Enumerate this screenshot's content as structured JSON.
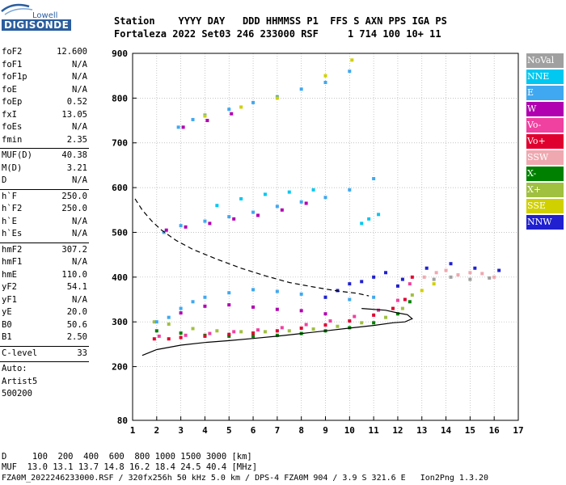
{
  "logo": {
    "top": "Lowell",
    "bottom": "DIGISONDE"
  },
  "header": {
    "labels": "Station    YYYY DAY   DDD HHMMSS P1  FFS S AXN PPS IGA PS",
    "values": "Fortaleza 2022 Set03 246 233000 RSF     1 714 100 10+ 11"
  },
  "params": [
    {
      "group": [
        {
          "label": "foF2",
          "value": "12.600"
        },
        {
          "label": "foF1",
          "value": "N/A"
        },
        {
          "label": "foF1p",
          "value": "N/A"
        },
        {
          "label": "foE",
          "value": "N/A"
        },
        {
          "label": "foEp",
          "value": "0.52"
        },
        {
          "label": "fxI",
          "value": "13.05"
        },
        {
          "label": "foEs",
          "value": "N/A"
        },
        {
          "label": "fmin",
          "value": "2.35"
        }
      ]
    },
    {
      "group": [
        {
          "label": "MUF(D)",
          "value": "40.38"
        },
        {
          "label": "M(D)",
          "value": "3.21"
        },
        {
          "label": "D",
          "value": "N/A"
        }
      ]
    },
    {
      "group": [
        {
          "label": "h`F",
          "value": "250.0"
        },
        {
          "label": "h`F2",
          "value": "250.0"
        },
        {
          "label": "h`E",
          "value": "N/A"
        },
        {
          "label": "h`Es",
          "value": "N/A"
        }
      ]
    },
    {
      "group": [
        {
          "label": "hmF2",
          "value": "307.2"
        },
        {
          "label": "hmF1",
          "value": "N/A"
        },
        {
          "label": "hmE",
          "value": "110.0"
        },
        {
          "label": "yF2",
          "value": "54.1"
        },
        {
          "label": "yF1",
          "value": "N/A"
        },
        {
          "label": "yE",
          "value": "20.0"
        },
        {
          "label": "B0",
          "value": "50.6"
        },
        {
          "label": "B1",
          "value": "2.50"
        }
      ]
    },
    {
      "group": [
        {
          "label": "C-level",
          "value": "33"
        }
      ]
    }
  ],
  "auto": [
    "Auto:",
    "Artist5",
    "500200"
  ],
  "legend": [
    {
      "label": "NoVal",
      "color": "#a0a0a0"
    },
    {
      "label": "NNE",
      "color": "#00c8f0"
    },
    {
      "label": "E",
      "color": "#40a8f0"
    },
    {
      "label": "W",
      "color": "#b000b0"
    },
    {
      "label": "Vo-",
      "color": "#f040a0"
    },
    {
      "label": "Vo+",
      "color": "#e00030"
    },
    {
      "label": "SSW",
      "color": "#f0a8b0"
    },
    {
      "label": "X-",
      "color": "#008000"
    },
    {
      "label": "X+",
      "color": "#a0c040"
    },
    {
      "label": "SSE",
      "color": "#d0d000"
    },
    {
      "label": "NNW",
      "color": "#2020d0"
    }
  ],
  "footer": {
    "d_row": "D     100  200  400  600  800 1000 1500 3000 [km]",
    "muf_row": "MUF  13.0 13.1 13.7 14.8 16.2 18.4 24.5 40.4 [MHz]",
    "file_row": "FZA0M_2022246233000.RSF / 320fx256h 50 kHz 5.0 km / DPS-4 FZA0M 904 / 3.9 S 321.6 E   Ion2Png 1.3.20"
  },
  "chart_data": {
    "type": "scatter",
    "title": "",
    "xlabel": "",
    "ylabel": "",
    "xlim": [
      1,
      17
    ],
    "ylim": [
      80,
      900
    ],
    "x_ticks": [
      1,
      2,
      3,
      4,
      5,
      6,
      7,
      8,
      9,
      10,
      11,
      12,
      13,
      14,
      15,
      16,
      17
    ],
    "y_ticks": [
      80,
      200,
      300,
      400,
      500,
      600,
      700,
      800,
      900
    ],
    "grid": true,
    "series": [
      {
        "name": "X+",
        "points": [
          [
            1.9,
            300
          ],
          [
            2.5,
            295
          ],
          [
            3.5,
            285
          ],
          [
            4.5,
            280
          ],
          [
            5.5,
            278
          ],
          [
            6.5,
            278
          ],
          [
            7.5,
            280
          ],
          [
            8.5,
            284
          ],
          [
            9.5,
            290
          ],
          [
            10.5,
            298
          ],
          [
            11.5,
            310
          ],
          [
            12.2,
            330
          ],
          [
            12.6,
            360
          ]
        ]
      },
      {
        "name": "X-",
        "points": [
          [
            2.0,
            280
          ],
          [
            3.0,
            275
          ],
          [
            4.0,
            270
          ],
          [
            5.0,
            268
          ],
          [
            6.0,
            268
          ],
          [
            7.0,
            270
          ],
          [
            8.0,
            274
          ],
          [
            9.0,
            280
          ],
          [
            10.0,
            287
          ],
          [
            11.0,
            298
          ],
          [
            12.0,
            318
          ],
          [
            12.5,
            345
          ]
        ]
      },
      {
        "name": "Vo+",
        "points": [
          [
            1.9,
            262
          ],
          [
            2.5,
            262
          ],
          [
            3.0,
            265
          ],
          [
            4.0,
            268
          ],
          [
            5.0,
            272
          ],
          [
            6.0,
            275
          ],
          [
            7.0,
            280
          ],
          [
            8.0,
            286
          ],
          [
            9.0,
            293
          ],
          [
            10.0,
            302
          ],
          [
            11.0,
            315
          ],
          [
            11.8,
            330
          ],
          [
            12.3,
            350
          ],
          [
            12.6,
            400
          ]
        ]
      },
      {
        "name": "Vo-",
        "points": [
          [
            2.1,
            268
          ],
          [
            3.2,
            270
          ],
          [
            4.2,
            274
          ],
          [
            5.2,
            278
          ],
          [
            6.2,
            282
          ],
          [
            7.2,
            287
          ],
          [
            8.2,
            294
          ],
          [
            9.2,
            302
          ],
          [
            10.2,
            312
          ],
          [
            11.2,
            326
          ],
          [
            12.0,
            348
          ],
          [
            12.5,
            385
          ]
        ]
      },
      {
        "name": "E",
        "points": [
          [
            2.0,
            300
          ],
          [
            2.5,
            310
          ],
          [
            3.0,
            330
          ],
          [
            3.5,
            345
          ],
          [
            4.0,
            355
          ],
          [
            5.0,
            365
          ],
          [
            6.0,
            372
          ],
          [
            7.0,
            368
          ],
          [
            8.0,
            362
          ],
          [
            9.0,
            355
          ],
          [
            10.0,
            350
          ],
          [
            11.0,
            355
          ],
          [
            2.3,
            500
          ],
          [
            3.0,
            515
          ],
          [
            4.0,
            525
          ],
          [
            5.0,
            535
          ],
          [
            6.0,
            545
          ],
          [
            7.0,
            558
          ],
          [
            8.0,
            568
          ],
          [
            9.0,
            578
          ],
          [
            10.0,
            595
          ],
          [
            11.0,
            620
          ],
          [
            2.9,
            735
          ],
          [
            3.5,
            752
          ],
          [
            4.0,
            762
          ],
          [
            5.0,
            775
          ],
          [
            6.0,
            790
          ],
          [
            7.0,
            803
          ],
          [
            8.0,
            820
          ],
          [
            9.0,
            835
          ],
          [
            10.0,
            860
          ]
        ]
      },
      {
        "name": "W",
        "points": [
          [
            3.0,
            320
          ],
          [
            4.0,
            335
          ],
          [
            5.0,
            338
          ],
          [
            6.0,
            333
          ],
          [
            7.0,
            328
          ],
          [
            8.0,
            325
          ],
          [
            9.0,
            318
          ],
          [
            2.4,
            505
          ],
          [
            3.2,
            512
          ],
          [
            4.2,
            520
          ],
          [
            5.2,
            530
          ],
          [
            6.2,
            538
          ],
          [
            7.2,
            550
          ],
          [
            8.2,
            565
          ],
          [
            3.1,
            735
          ],
          [
            4.1,
            750
          ],
          [
            5.1,
            765
          ]
        ]
      },
      {
        "name": "NNE",
        "points": [
          [
            4.5,
            560
          ],
          [
            5.5,
            575
          ],
          [
            6.5,
            585
          ],
          [
            7.5,
            590
          ],
          [
            8.5,
            595
          ],
          [
            10.5,
            520
          ],
          [
            10.8,
            530
          ],
          [
            11.2,
            540
          ]
        ]
      },
      {
        "name": "NNW",
        "points": [
          [
            9.0,
            355
          ],
          [
            9.5,
            370
          ],
          [
            10.0,
            385
          ],
          [
            10.5,
            390
          ],
          [
            11.0,
            400
          ],
          [
            11.5,
            410
          ],
          [
            12.0,
            380
          ],
          [
            12.2,
            395
          ],
          [
            13.2,
            420
          ],
          [
            14.2,
            430
          ],
          [
            15.2,
            420
          ],
          [
            16.2,
            415
          ]
        ]
      },
      {
        "name": "SSW",
        "points": [
          [
            13.1,
            400
          ],
          [
            13.6,
            410
          ],
          [
            14.0,
            415
          ],
          [
            14.5,
            405
          ],
          [
            15.0,
            410
          ],
          [
            15.5,
            408
          ],
          [
            16.0,
            400
          ]
        ]
      },
      {
        "name": "SSE",
        "points": [
          [
            4.0,
            760
          ],
          [
            5.5,
            780
          ],
          [
            7.0,
            800
          ],
          [
            9.0,
            850
          ],
          [
            10.1,
            885
          ],
          [
            13.0,
            370
          ],
          [
            13.5,
            385
          ]
        ]
      },
      {
        "name": "NoVal",
        "points": [
          [
            13.5,
            395
          ],
          [
            14.2,
            400
          ],
          [
            15.0,
            395
          ],
          [
            15.8,
            398
          ]
        ]
      }
    ],
    "curves": [
      {
        "style": "solid",
        "points": [
          [
            1.4,
            225
          ],
          [
            2.0,
            238
          ],
          [
            3.0,
            248
          ],
          [
            4.0,
            254
          ],
          [
            5.0,
            258
          ],
          [
            6.0,
            263
          ],
          [
            7.0,
            268
          ],
          [
            8.0,
            274
          ],
          [
            9.0,
            280
          ],
          [
            10.0,
            286
          ],
          [
            11.0,
            292
          ],
          [
            11.8,
            298
          ],
          [
            12.3,
            300
          ],
          [
            12.6,
            307
          ],
          [
            12.4,
            316
          ],
          [
            12.0,
            320
          ],
          [
            11.5,
            326
          ],
          [
            10.5,
            330
          ]
        ]
      },
      {
        "style": "dashed",
        "points": [
          [
            1.1,
            575
          ],
          [
            1.4,
            550
          ],
          [
            1.8,
            525
          ],
          [
            2.2,
            505
          ],
          [
            2.8,
            482
          ],
          [
            3.5,
            462
          ],
          [
            4.5,
            440
          ],
          [
            5.5,
            420
          ],
          [
            6.5,
            403
          ],
          [
            7.5,
            388
          ],
          [
            8.5,
            378
          ],
          [
            9.5,
            369
          ],
          [
            10.3,
            364
          ],
          [
            10.8,
            358
          ]
        ]
      }
    ]
  }
}
